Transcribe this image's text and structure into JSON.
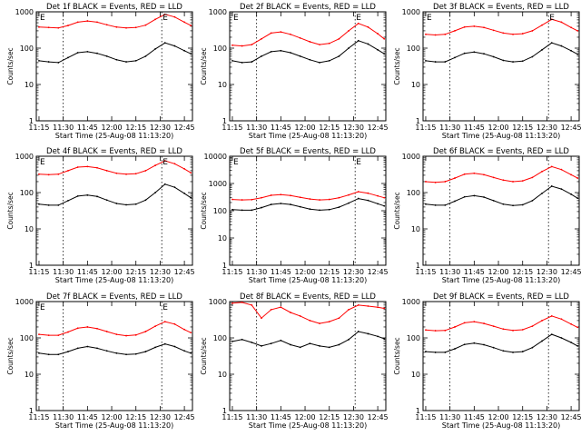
{
  "figure": {
    "panels": [
      {
        "title": "Det 1f BLACK = Events, RED = LLD"
      },
      {
        "title": "Det 2f BLACK = Events, RED = LLD"
      },
      {
        "title": "Det 3f BLACK = Events, RED = LLD"
      },
      {
        "title": "Det 4f BLACK = Events, RED = LLD"
      },
      {
        "title": "Det 5f BLACK = Events, RED = LLD"
      },
      {
        "title": "Det 6f BLACK = Events, RED = LLD"
      },
      {
        "title": "Det 7f BLACK = Events, RED = LLD"
      },
      {
        "title": "Det 8f BLACK = Events, RED = LLD"
      },
      {
        "title": "Det 9f BLACK = Events, RED = LLD"
      }
    ]
  },
  "chart_data": [
    {
      "type": "line",
      "title": "Det 1f BLACK = Events, RED = LLD",
      "xlabel": "Start Time (25-Aug-08 11:13:20)",
      "ylabel": "Counts/sec",
      "x_ticks": [
        "11:15",
        "11:30",
        "11:45",
        "12:00",
        "12:15",
        "12:30",
        "12:45"
      ],
      "y_ticks": [
        "1",
        "10",
        "100",
        "1000"
      ],
      "ylim": [
        1,
        1000
      ],
      "yscale": "log",
      "markers": [
        "E",
        "E"
      ],
      "marker_times": [
        "11:15",
        "12:31"
      ],
      "dotted_lines_at": [
        "11:30",
        "12:31"
      ],
      "x": [
        "11:15",
        "11:21",
        "11:27",
        "11:33",
        "11:39",
        "11:45",
        "11:51",
        "11:57",
        "12:03",
        "12:09",
        "12:15",
        "12:21",
        "12:27",
        "12:33",
        "12:39",
        "12:45",
        "12:49"
      ],
      "series": [
        {
          "name": "Events",
          "color": "#000000",
          "values": [
            45,
            42,
            40,
            55,
            75,
            80,
            72,
            60,
            48,
            42,
            45,
            60,
            95,
            140,
            115,
            85,
            70
          ]
        },
        {
          "name": "LLD",
          "color": "#ff0000",
          "values": [
            380,
            370,
            360,
            420,
            520,
            560,
            520,
            440,
            380,
            360,
            370,
            430,
            620,
            850,
            720,
            520,
            420
          ]
        }
      ]
    },
    {
      "type": "line",
      "title": "Det 2f BLACK = Events, RED = LLD",
      "xlabel": "Start Time (25-Aug-08 11:13:20)",
      "ylabel": "Counts/sec",
      "x_ticks": [
        "11:15",
        "11:30",
        "11:45",
        "12:00",
        "12:15",
        "12:30",
        "12:45"
      ],
      "y_ticks": [
        "1",
        "10",
        "100",
        "1000"
      ],
      "ylim": [
        1,
        1000
      ],
      "yscale": "log",
      "markers": [
        "E",
        "E"
      ],
      "marker_times": [
        "11:15",
        "12:31"
      ],
      "dotted_lines_at": [
        "11:30",
        "12:31"
      ],
      "x": [
        "11:15",
        "11:21",
        "11:27",
        "11:33",
        "11:39",
        "11:45",
        "11:51",
        "11:57",
        "12:03",
        "12:09",
        "12:15",
        "12:21",
        "12:27",
        "12:33",
        "12:39",
        "12:45",
        "12:49"
      ],
      "series": [
        {
          "name": "Events",
          "color": "#000000",
          "values": [
            45,
            40,
            42,
            60,
            80,
            85,
            75,
            60,
            48,
            40,
            45,
            60,
            100,
            160,
            130,
            90,
            70
          ]
        },
        {
          "name": "LLD",
          "color": "#ff0000",
          "values": [
            120,
            115,
            125,
            180,
            260,
            280,
            240,
            190,
            150,
            125,
            135,
            180,
            300,
            480,
            380,
            250,
            180
          ]
        }
      ]
    },
    {
      "type": "line",
      "title": "Det 3f BLACK = Events, RED = LLD",
      "xlabel": "Start Time (25-Aug-08 11:13:20)",
      "ylabel": "Counts/sec",
      "x_ticks": [
        "11:15",
        "11:30",
        "11:45",
        "12:00",
        "12:15",
        "12:30",
        "12:45"
      ],
      "y_ticks": [
        "1",
        "10",
        "100",
        "1000"
      ],
      "ylim": [
        1,
        1000
      ],
      "yscale": "log",
      "markers": [
        "E",
        "E"
      ],
      "marker_times": [
        "11:15",
        "12:31"
      ],
      "dotted_lines_at": [
        "11:30",
        "12:31"
      ],
      "x": [
        "11:15",
        "11:21",
        "11:27",
        "11:33",
        "11:39",
        "11:45",
        "11:51",
        "11:57",
        "12:03",
        "12:09",
        "12:15",
        "12:21",
        "12:27",
        "12:33",
        "12:39",
        "12:45",
        "12:49"
      ],
      "series": [
        {
          "name": "Events",
          "color": "#000000",
          "values": [
            45,
            42,
            42,
            55,
            72,
            78,
            70,
            58,
            46,
            42,
            44,
            58,
            90,
            140,
            115,
            85,
            68
          ]
        },
        {
          "name": "LLD",
          "color": "#ff0000",
          "values": [
            240,
            230,
            240,
            300,
            380,
            400,
            370,
            310,
            260,
            240,
            250,
            300,
            430,
            620,
            520,
            370,
            300
          ]
        }
      ]
    },
    {
      "type": "line",
      "title": "Det 4f BLACK = Events, RED = LLD",
      "xlabel": "Start Time (25-Aug-08 11:13:20)",
      "ylabel": "Counts/sec",
      "x_ticks": [
        "11:15",
        "11:30",
        "11:45",
        "12:00",
        "12:15",
        "12:30",
        "12:45"
      ],
      "y_ticks": [
        "1",
        "10",
        "100",
        "1000"
      ],
      "ylim": [
        1,
        1000
      ],
      "yscale": "log",
      "markers": [
        "E",
        "E"
      ],
      "marker_times": [
        "11:15",
        "12:31"
      ],
      "dotted_lines_at": [
        "11:30",
        "12:31"
      ],
      "x": [
        "11:15",
        "11:21",
        "11:27",
        "11:33",
        "11:39",
        "11:45",
        "11:51",
        "11:57",
        "12:03",
        "12:09",
        "12:15",
        "12:21",
        "12:27",
        "12:33",
        "12:39",
        "12:45",
        "12:49"
      ],
      "series": [
        {
          "name": "Events",
          "color": "#000000",
          "values": [
            48,
            45,
            45,
            60,
            80,
            85,
            78,
            62,
            50,
            46,
            48,
            62,
            100,
            170,
            140,
            95,
            72
          ]
        },
        {
          "name": "LLD",
          "color": "#ff0000",
          "values": [
            320,
            310,
            320,
            400,
            500,
            520,
            480,
            400,
            340,
            320,
            330,
            400,
            560,
            750,
            620,
            450,
            350
          ]
        }
      ]
    },
    {
      "type": "line",
      "title": "Det 5f BLACK = Events, RED = LLD",
      "xlabel": "Start Time (25-Aug-08 11:13:20)",
      "ylabel": "Counts/sec",
      "x_ticks": [
        "11:15",
        "11:30",
        "11:45",
        "12:00",
        "12:15",
        "12:30",
        "12:45"
      ],
      "y_ticks": [
        "1",
        "10",
        "100",
        "1000",
        "10000"
      ],
      "ylim": [
        1,
        10000
      ],
      "yscale": "log",
      "markers": [
        "E",
        "E"
      ],
      "marker_times": [
        "11:15",
        "12:31"
      ],
      "dotted_lines_at": [
        "11:30",
        "12:31"
      ],
      "x": [
        "11:15",
        "11:21",
        "11:27",
        "11:33",
        "11:39",
        "11:45",
        "11:51",
        "11:57",
        "12:03",
        "12:09",
        "12:15",
        "12:21",
        "12:27",
        "12:33",
        "12:39",
        "12:45",
        "12:49"
      ],
      "series": [
        {
          "name": "Events",
          "color": "#000000",
          "values": [
            110,
            105,
            105,
            130,
            170,
            185,
            170,
            140,
            115,
            105,
            110,
            135,
            190,
            280,
            240,
            180,
            150
          ]
        },
        {
          "name": "LLD",
          "color": "#ff0000",
          "values": [
            260,
            250,
            255,
            300,
            370,
            390,
            360,
            310,
            270,
            250,
            260,
            300,
            380,
            500,
            440,
            350,
            300
          ]
        }
      ]
    },
    {
      "type": "line",
      "title": "Det 6f BLACK = Events, RED = LLD",
      "xlabel": "Start Time (25-Aug-08 11:13:20)",
      "ylabel": "Counts/sec",
      "x_ticks": [
        "11:15",
        "11:30",
        "11:45",
        "12:00",
        "12:15",
        "12:30",
        "12:45"
      ],
      "y_ticks": [
        "1",
        "10",
        "100",
        "1000"
      ],
      "ylim": [
        1,
        1000
      ],
      "yscale": "log",
      "markers": [],
      "marker_times": [],
      "dotted_lines_at": [
        "11:30",
        "12:31"
      ],
      "x": [
        "11:15",
        "11:21",
        "11:27",
        "11:33",
        "11:39",
        "11:45",
        "11:51",
        "11:57",
        "12:03",
        "12:09",
        "12:15",
        "12:21",
        "12:27",
        "12:33",
        "12:39",
        "12:45",
        "12:49"
      ],
      "series": [
        {
          "name": "Events",
          "color": "#000000",
          "values": [
            48,
            45,
            45,
            58,
            76,
            82,
            75,
            60,
            48,
            44,
            46,
            60,
            95,
            150,
            125,
            90,
            70
          ]
        },
        {
          "name": "LLD",
          "color": "#ff0000",
          "values": [
            200,
            190,
            200,
            250,
            320,
            340,
            310,
            260,
            220,
            200,
            210,
            260,
            380,
            520,
            430,
            310,
            250
          ]
        }
      ]
    },
    {
      "type": "line",
      "title": "Det 7f BLACK = Events, RED = LLD",
      "xlabel": "Start Time (25-Aug-08 11:13:20)",
      "ylabel": "Counts/sec",
      "x_ticks": [
        "11:15",
        "11:30",
        "11:45",
        "12:00",
        "12:15",
        "12:30",
        "12:45"
      ],
      "y_ticks": [
        "1",
        "10",
        "100",
        "1000"
      ],
      "ylim": [
        1,
        1000
      ],
      "yscale": "log",
      "markers": [
        "E",
        "E"
      ],
      "marker_times": [
        "11:15",
        "12:31"
      ],
      "dotted_lines_at": [
        "11:30",
        "12:31"
      ],
      "x": [
        "11:15",
        "11:21",
        "11:27",
        "11:33",
        "11:39",
        "11:45",
        "11:51",
        "11:57",
        "12:03",
        "12:09",
        "12:15",
        "12:21",
        "12:27",
        "12:33",
        "12:39",
        "12:45",
        "12:49"
      ],
      "series": [
        {
          "name": "Events",
          "color": "#000000",
          "values": [
            38,
            35,
            35,
            42,
            52,
            58,
            52,
            44,
            38,
            35,
            36,
            42,
            55,
            68,
            58,
            44,
            38
          ]
        },
        {
          "name": "LLD",
          "color": "#ff0000",
          "values": [
            125,
            118,
            118,
            145,
            185,
            200,
            180,
            150,
            125,
            115,
            120,
            150,
            210,
            280,
            240,
            170,
            140
          ]
        }
      ]
    },
    {
      "type": "line",
      "title": "Det 8f BLACK = Events, RED = LLD",
      "xlabel": "Start Time (25-Aug-08 11:13:20)",
      "ylabel": "Counts/sec",
      "x_ticks": [
        "11:15",
        "11:30",
        "11:45",
        "12:00",
        "12:15",
        "12:30",
        "12:45"
      ],
      "y_ticks": [
        "1",
        "10",
        "100",
        "1000"
      ],
      "ylim": [
        1,
        1000
      ],
      "yscale": "log",
      "markers": [],
      "marker_times": [],
      "dotted_lines_at": [
        "11:30",
        "12:31"
      ],
      "x": [
        "11:15",
        "11:21",
        "11:27",
        "11:33",
        "11:39",
        "11:45",
        "11:51",
        "11:57",
        "12:03",
        "12:09",
        "12:15",
        "12:21",
        "12:27",
        "12:33",
        "12:39",
        "12:45",
        "12:49"
      ],
      "series": [
        {
          "name": "Events",
          "color": "#000000",
          "values": [
            80,
            90,
            75,
            60,
            70,
            85,
            65,
            55,
            70,
            60,
            55,
            65,
            90,
            150,
            130,
            110,
            95
          ]
        },
        {
          "name": "LLD",
          "color": "#ff0000",
          "values": [
            900,
            950,
            800,
            350,
            600,
            700,
            500,
            400,
            300,
            250,
            280,
            350,
            600,
            800,
            750,
            700,
            650
          ]
        }
      ]
    },
    {
      "type": "line",
      "title": "Det 9f BLACK = Events, RED = LLD",
      "xlabel": "Start Time (25-Aug-08 11:13:20)",
      "ylabel": "Counts/sec",
      "x_ticks": [
        "11:15",
        "11:30",
        "11:45",
        "12:00",
        "12:15",
        "12:30",
        "12:45"
      ],
      "y_ticks": [
        "1",
        "10",
        "100",
        "1000"
      ],
      "ylim": [
        1,
        1000
      ],
      "yscale": "log",
      "markers": [],
      "marker_times": [],
      "dotted_lines_at": [
        "11:30",
        "12:31"
      ],
      "x": [
        "11:15",
        "11:21",
        "11:27",
        "11:33",
        "11:39",
        "11:45",
        "11:51",
        "11:57",
        "12:03",
        "12:09",
        "12:15",
        "12:21",
        "12:27",
        "12:33",
        "12:39",
        "12:45",
        "12:49"
      ],
      "series": [
        {
          "name": "Events",
          "color": "#000000",
          "values": [
            42,
            40,
            40,
            50,
            66,
            72,
            65,
            54,
            44,
            40,
            42,
            54,
            82,
            125,
            100,
            75,
            60
          ]
        },
        {
          "name": "LLD",
          "color": "#ff0000",
          "values": [
            165,
            158,
            160,
            200,
            260,
            280,
            250,
            210,
            175,
            160,
            168,
            210,
            300,
            400,
            330,
            240,
            195
          ]
        }
      ]
    }
  ]
}
